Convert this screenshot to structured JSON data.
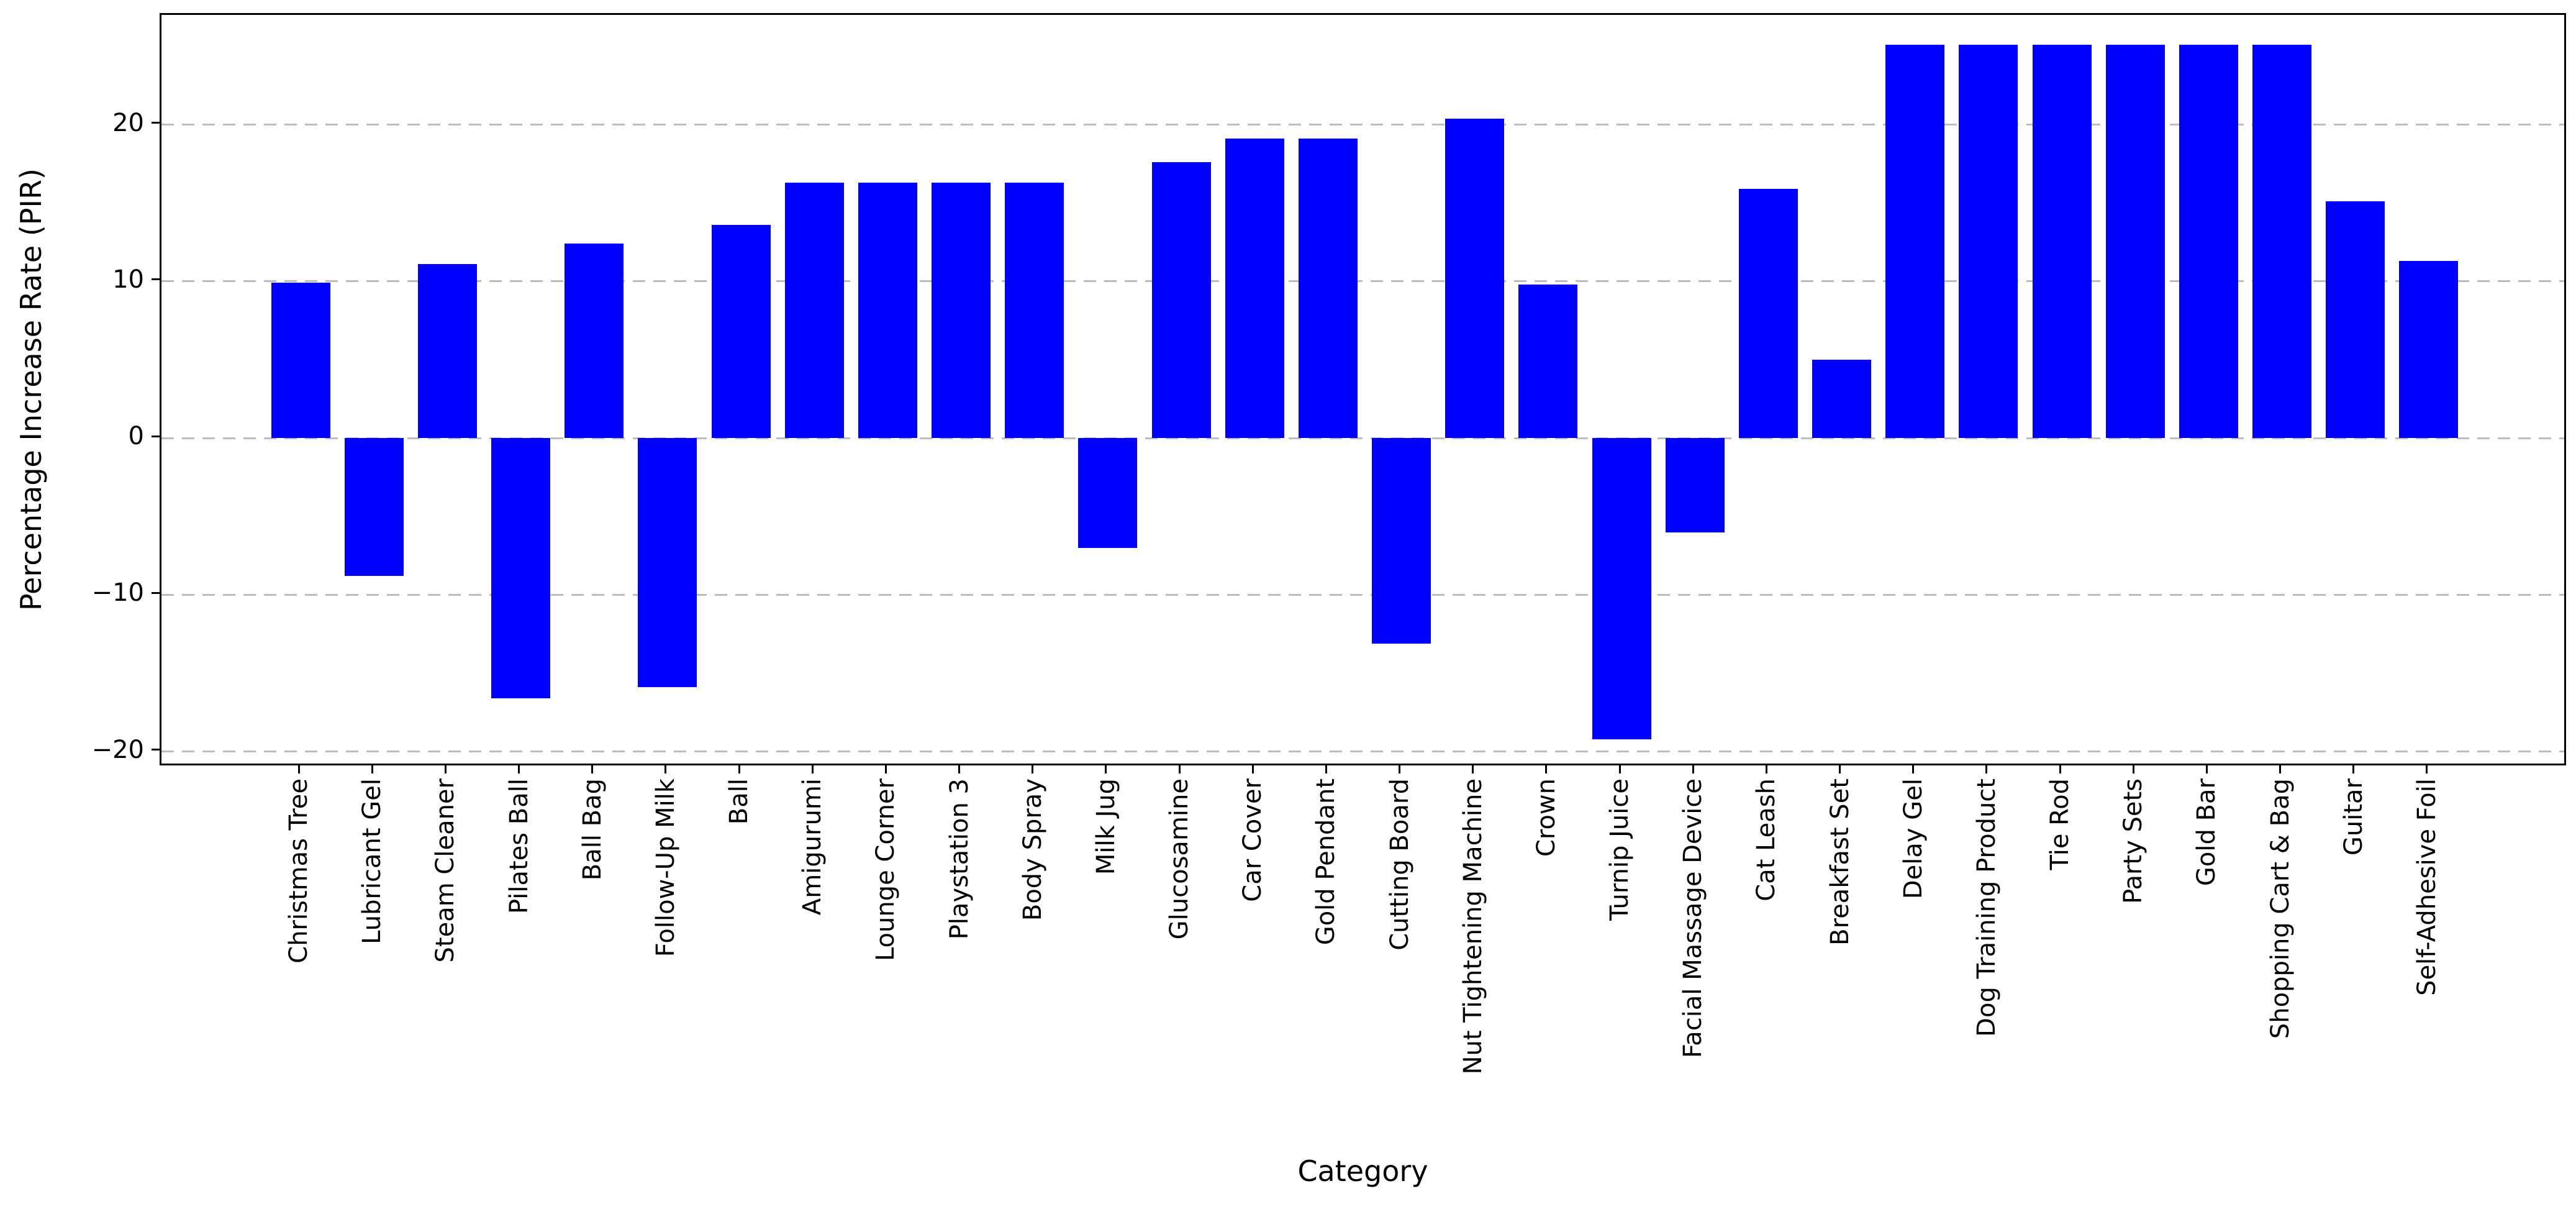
{
  "figure": {
    "background": "#ffffff",
    "plot_background": "#ffffff",
    "spine_color": "#000000"
  },
  "chart_data": {
    "type": "bar",
    "title": "",
    "xlabel": "Category",
    "ylabel": "Percentage Increase Rate (PIR)",
    "categories": [
      "Christmas Tree",
      "Lubricant Gel",
      "Steam Cleaner",
      "Pilates Ball",
      "Ball Bag",
      "Follow-Up Milk",
      "Ball",
      "Amigurumi",
      "Lounge Corner",
      "Playstation 3",
      "Body Spray",
      "Milk Jug",
      "Glucosamine",
      "Car Cover",
      "Gold Pendant",
      "Cutting Board",
      "Nut Tightening Machine",
      "Crown",
      "Turnip Juice",
      "Facial Massage Device",
      "Cat Leash",
      "Breakfast Set",
      "Delay Gel",
      "Dog Training Product",
      "Tie Rod",
      "Party Sets",
      "Gold Bar",
      "Shopping Cart & Bag",
      "Guitar",
      "Self-Adhesive Foil"
    ],
    "values": [
      9.9,
      -8.8,
      11.1,
      -16.6,
      12.4,
      -15.9,
      13.6,
      16.3,
      16.3,
      16.3,
      16.3,
      -7.0,
      17.6,
      19.1,
      19.1,
      -13.1,
      20.4,
      9.8,
      -19.2,
      -6.0,
      15.9,
      5.0,
      25.1,
      25.1,
      25.1,
      25.1,
      25.1,
      25.1,
      15.1,
      11.3
    ],
    "yticks": [
      -20,
      -10,
      0,
      10,
      20
    ],
    "ylim": [
      -21,
      27
    ],
    "bar_color": "#0000ff",
    "bar_width_ratio": 0.8,
    "grid": {
      "axis": "y",
      "style": "dashed",
      "color": "#bdbdbd"
    },
    "legend": "none"
  }
}
